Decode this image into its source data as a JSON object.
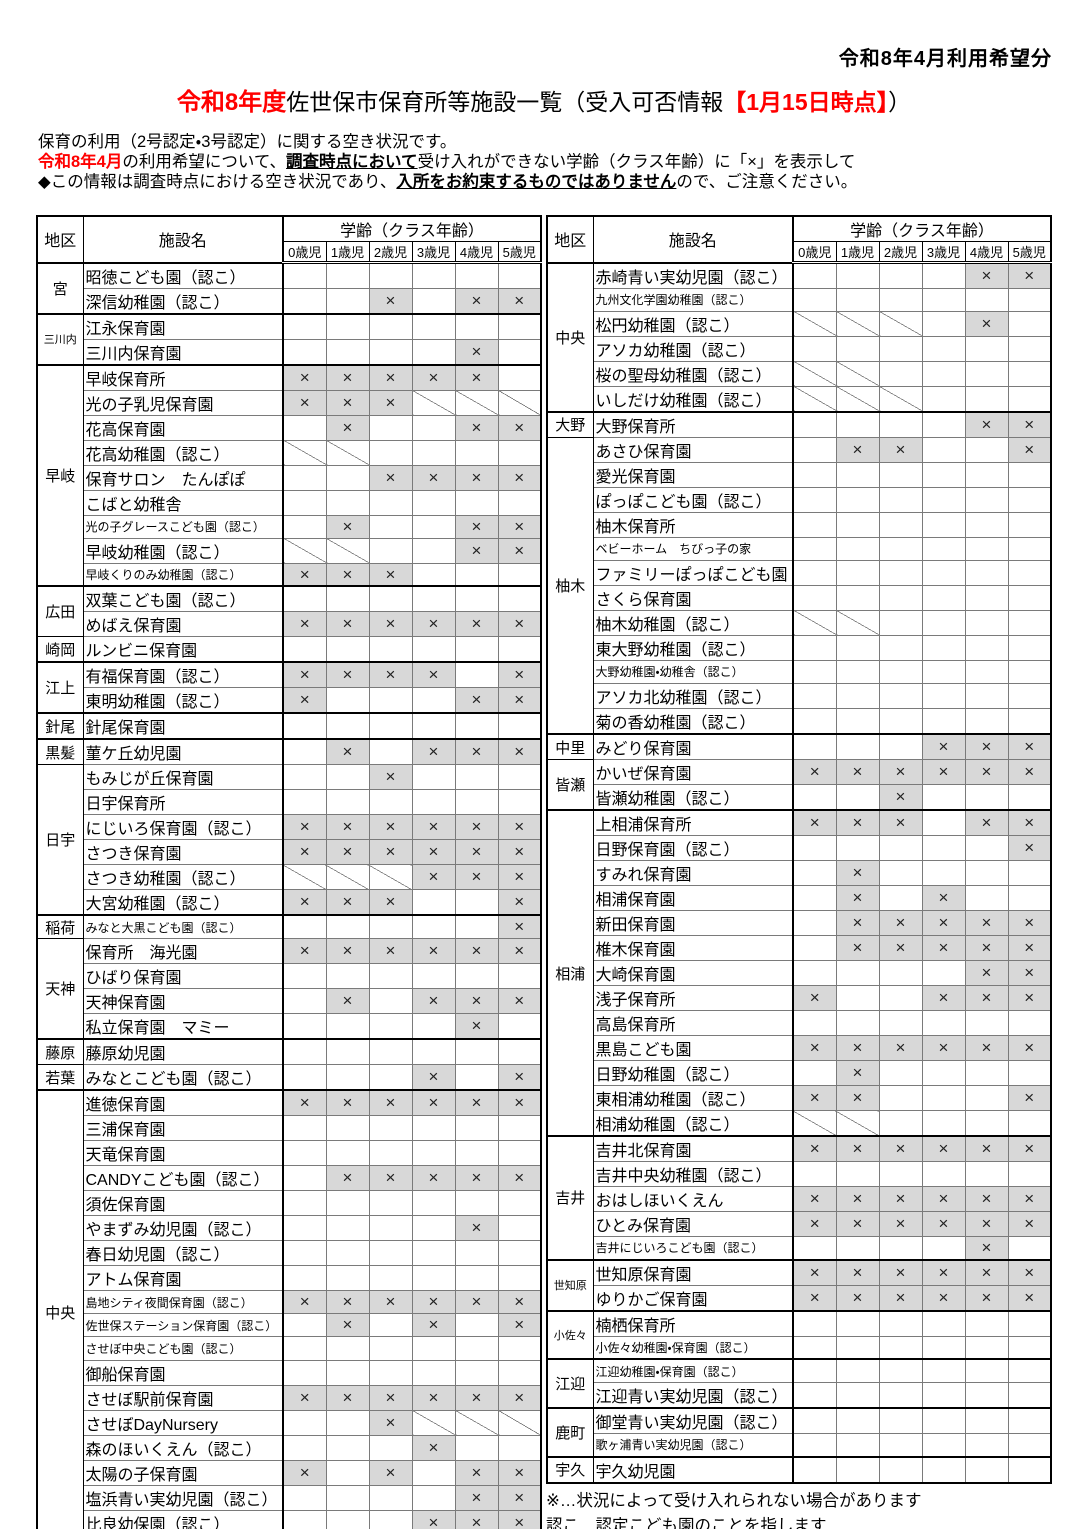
{
  "header": {
    "period_note": "令和8年4月利用希望分"
  },
  "title": {
    "era_prefix": "令和8年度",
    "main": "佐世保市保育所等施設一覧（受入可否情報",
    "date_highlight": "【1月15日時点】",
    "suffix": "）"
  },
  "intro": {
    "line1": "保育の利用（2号認定・3号認定）に関する空き状況です。",
    "line2_red": "令和8年4月",
    "line2_a": "の利用希望について、",
    "line2_bold": "調査時点において",
    "line2_b": "受け入れができない学齢（クラス年齢）に「×」を表示して",
    "line3_a": "◆この情報は調査時点における空き状況であり、",
    "line3_bold": "入所をお約束するものではありません",
    "line3_b": "ので、ご注意ください。"
  },
  "table_header": {
    "district": "地区",
    "facility": "施設名",
    "age_group": "学齢（クラス年齢）",
    "ages": [
      "0歳児",
      "1歳児",
      "2歳児",
      "3歳児",
      "4歳児",
      "5歳児"
    ]
  },
  "legend": {
    "x_mark": "×",
    "note1": "※…状況によって受け入れられない場合があります",
    "note2": "認こ…認定こども園のことを指します"
  },
  "colors": {
    "unavailable_bg": "#d8d8d8",
    "accent_red": "#ff0000"
  },
  "tables": [
    {
      "side": "left",
      "rows": [
        {
          "d": "宮",
          "s": 2,
          "g": 1,
          "n": "昭徳こども園（認こ）",
          "c": [
            "",
            "",
            "",
            "",
            "",
            ""
          ]
        },
        {
          "n": "深信幼稚園（認こ）",
          "c": [
            "",
            "",
            "x",
            "",
            "x",
            "x"
          ]
        },
        {
          "d": "三川内",
          "s": 2,
          "g": 1,
          "n": "江永保育園",
          "c": [
            "",
            "",
            "",
            "",
            "",
            ""
          ]
        },
        {
          "n": "三川内保育園",
          "c": [
            "",
            "",
            "",
            "",
            "x",
            ""
          ]
        },
        {
          "d": "早岐",
          "s": 9,
          "g": 1,
          "n": "早岐保育所",
          "c": [
            "x",
            "x",
            "x",
            "x",
            "x",
            ""
          ]
        },
        {
          "n": "光の子乳児保育園",
          "c": [
            "x",
            "x",
            "x",
            "d",
            "d",
            "d"
          ]
        },
        {
          "n": "花高保育園",
          "c": [
            "",
            "x",
            "",
            "",
            "x",
            "x"
          ]
        },
        {
          "n": "花高幼稚園（認こ）",
          "c": [
            "d",
            "d",
            "",
            "",
            "",
            ""
          ]
        },
        {
          "n": "保育サロン　たんぽぽ",
          "c": [
            "",
            "",
            "x",
            "x",
            "x",
            "x"
          ]
        },
        {
          "n": "こばと幼稚舎",
          "c": [
            "",
            "",
            "",
            "",
            "",
            ""
          ]
        },
        {
          "n": "光の子グレースこども園（認こ）",
          "c": [
            "",
            "x",
            "",
            "",
            "x",
            "x"
          ]
        },
        {
          "n": "早岐幼稚園（認こ）",
          "c": [
            "d",
            "d",
            "",
            "",
            "x",
            "x"
          ]
        },
        {
          "n": "早岐くりのみ幼稚園（認こ）",
          "c": [
            "x",
            "x",
            "x",
            "",
            "",
            ""
          ]
        },
        {
          "d": "広田",
          "s": 2,
          "g": 1,
          "n": "双葉こども園（認こ）",
          "c": [
            "",
            "",
            "",
            "",
            "",
            ""
          ]
        },
        {
          "n": "めばえ保育園",
          "c": [
            "x",
            "x",
            "x",
            "x",
            "x",
            "x"
          ]
        },
        {
          "d": "崎岡",
          "s": 1,
          "n": "ルンビニ保育園",
          "c": [
            "",
            "",
            "",
            "",
            "",
            ""
          ]
        },
        {
          "d": "江上",
          "s": 2,
          "g": 1,
          "n": "有福保育園（認こ）",
          "c": [
            "x",
            "x",
            "x",
            "x",
            "",
            "x"
          ]
        },
        {
          "n": "東明幼稚園（認こ）",
          "c": [
            "x",
            "",
            "",
            "",
            "x",
            "x"
          ]
        },
        {
          "d": "針尾",
          "s": 1,
          "g": 1,
          "n": "針尾保育園",
          "c": [
            "",
            "",
            "",
            "",
            "",
            ""
          ]
        },
        {
          "d": "黒髪",
          "s": 1,
          "g": 1,
          "n": "菫ケ丘幼児園",
          "c": [
            "",
            "x",
            "",
            "x",
            "x",
            "x"
          ]
        },
        {
          "d": "日宇",
          "s": 6,
          "n": "もみじが丘保育園",
          "c": [
            "",
            "",
            "x",
            "",
            "",
            ""
          ]
        },
        {
          "n": "日宇保育所",
          "c": [
            "",
            "",
            "",
            "",
            "",
            ""
          ]
        },
        {
          "n": "にじいろ保育園（認こ）",
          "c": [
            "x",
            "x",
            "x",
            "x",
            "x",
            "x"
          ]
        },
        {
          "n": "さつき保育園",
          "c": [
            "x",
            "x",
            "x",
            "x",
            "x",
            "x"
          ]
        },
        {
          "n": "さつき幼稚園（認こ）",
          "c": [
            "d",
            "d",
            "d",
            "x",
            "x",
            "x"
          ]
        },
        {
          "n": "大宮幼稚園（認こ）",
          "c": [
            "x",
            "x",
            "x",
            "",
            "",
            "x"
          ]
        },
        {
          "d": "稲荷",
          "s": 1,
          "g": 1,
          "n": "みなと大黒こども園（認こ）",
          "c": [
            "",
            "",
            "",
            "",
            "",
            "x"
          ]
        },
        {
          "d": "天神",
          "s": 4,
          "n": "保育所　海光園",
          "c": [
            "x",
            "x",
            "x",
            "x",
            "x",
            "x"
          ]
        },
        {
          "n": "ひばり保育園",
          "c": [
            "",
            "",
            "",
            "",
            "",
            ""
          ]
        },
        {
          "n": "天神保育園",
          "c": [
            "",
            "x",
            "",
            "x",
            "x",
            "x"
          ]
        },
        {
          "n": "私立保育園　マミー",
          "c": [
            "",
            "",
            "",
            "",
            "x",
            ""
          ]
        },
        {
          "d": "藤原",
          "s": 1,
          "g": 1,
          "n": "藤原幼児園",
          "c": [
            "",
            "",
            "",
            "",
            "",
            ""
          ]
        },
        {
          "d": "若葉",
          "s": 1,
          "n": "みなとこども園（認こ）",
          "c": [
            "",
            "",
            "",
            "x",
            "",
            "x"
          ]
        },
        {
          "d": "中央",
          "s": 18,
          "g": 1,
          "n": "進徳保育園",
          "c": [
            "x",
            "x",
            "x",
            "x",
            "x",
            "x"
          ]
        },
        {
          "n": "三浦保育園",
          "c": [
            "",
            "",
            "",
            "",
            "",
            ""
          ]
        },
        {
          "n": "天竜保育園",
          "c": [
            "",
            "",
            "",
            "",
            "",
            ""
          ]
        },
        {
          "n": "CANDYこども園（認こ）",
          "c": [
            "",
            "x",
            "x",
            "x",
            "x",
            "x"
          ]
        },
        {
          "n": "須佐保育園",
          "c": [
            "",
            "",
            "",
            "",
            "",
            ""
          ]
        },
        {
          "n": "やまずみ幼児園（認こ）",
          "c": [
            "",
            "",
            "",
            "",
            "x",
            ""
          ]
        },
        {
          "n": "春日幼児園（認こ）",
          "c": [
            "",
            "",
            "",
            "",
            "",
            ""
          ]
        },
        {
          "n": "アトム保育園",
          "c": [
            "",
            "",
            "",
            "",
            "",
            ""
          ]
        },
        {
          "n": "島地シティ夜間保育園（認こ）",
          "c": [
            "x",
            "x",
            "x",
            "x",
            "x",
            "x"
          ]
        },
        {
          "n": "佐世保ステーション保育園（認こ）",
          "c": [
            "",
            "x",
            "",
            "x",
            "",
            "x"
          ]
        },
        {
          "n": "させぼ中央こども園（認こ）",
          "c": [
            "",
            "",
            "",
            "",
            "",
            ""
          ]
        },
        {
          "n": "御船保育園",
          "c": [
            "",
            "",
            "",
            "",
            "",
            ""
          ]
        },
        {
          "n": "させぼ駅前保育園",
          "c": [
            "x",
            "x",
            "x",
            "x",
            "x",
            "x"
          ]
        },
        {
          "n": "させぼDayNursery",
          "c": [
            "",
            "",
            "x",
            "d",
            "d",
            "d"
          ]
        },
        {
          "n": "森のほいくえん（認こ）",
          "c": [
            "",
            "",
            "",
            "x",
            "",
            ""
          ]
        },
        {
          "n": "太陽の子保育園",
          "c": [
            "x",
            "",
            "x",
            "",
            "x",
            "x"
          ]
        },
        {
          "n": "塩浜青い実幼児園（認こ）",
          "c": [
            "",
            "",
            "",
            "",
            "x",
            "x"
          ]
        },
        {
          "n": "比良幼保園（認こ）",
          "c": [
            "",
            "",
            "",
            "x",
            "x",
            "x"
          ]
        }
      ]
    },
    {
      "side": "right",
      "rows": [
        {
          "d": "中央",
          "s": 6,
          "g": 1,
          "n": "赤崎青い実幼児園（認こ）",
          "c": [
            "",
            "",
            "",
            "",
            "x",
            "x"
          ]
        },
        {
          "n": "九州文化学園幼稚園（認こ）",
          "c": [
            "",
            "",
            "",
            "",
            "",
            ""
          ]
        },
        {
          "n": "松円幼稚園（認こ）",
          "c": [
            "d",
            "d",
            "d",
            "",
            "x",
            ""
          ]
        },
        {
          "n": "アソカ幼稚園（認こ）",
          "c": [
            "",
            "",
            "",
            "",
            "",
            ""
          ]
        },
        {
          "n": "桜の聖母幼稚園（認こ）",
          "c": [
            "d",
            "d",
            "",
            "",
            "",
            ""
          ]
        },
        {
          "n": "いしだけ幼稚園（認こ）",
          "c": [
            "d",
            "d",
            "d",
            "",
            "",
            ""
          ]
        },
        {
          "d": "大野",
          "s": 1,
          "g": 1,
          "n": "大野保育所",
          "c": [
            "",
            "",
            "",
            "",
            "x",
            "x"
          ]
        },
        {
          "d": "柚木",
          "s": 12,
          "n": "あさひ保育園",
          "c": [
            "",
            "x",
            "x",
            "",
            "",
            "x"
          ]
        },
        {
          "n": "愛光保育園",
          "c": [
            "",
            "",
            "",
            "",
            "",
            ""
          ]
        },
        {
          "n": "ぽっぽこども園（認こ）",
          "c": [
            "",
            "",
            "",
            "",
            "",
            ""
          ]
        },
        {
          "n": "柚木保育所",
          "c": [
            "",
            "",
            "",
            "",
            "",
            ""
          ]
        },
        {
          "n": "ベビーホーム　ちびっ子の家",
          "c": [
            "",
            "",
            "",
            "",
            "",
            ""
          ]
        },
        {
          "n": "ファミリーぽっぽこども園",
          "c": [
            "",
            "",
            "",
            "",
            "",
            ""
          ]
        },
        {
          "n": "さくら保育園",
          "c": [
            "",
            "",
            "",
            "",
            "",
            ""
          ]
        },
        {
          "n": "柚木幼稚園（認こ）",
          "c": [
            "d",
            "d",
            "",
            "",
            "",
            ""
          ]
        },
        {
          "n": "東大野幼稚園（認こ）",
          "c": [
            "",
            "",
            "",
            "",
            "",
            ""
          ]
        },
        {
          "n": "大野幼稚園・幼稚舎（認こ）",
          "c": [
            "",
            "",
            "",
            "",
            "",
            ""
          ]
        },
        {
          "n": "アソカ北幼稚園（認こ）",
          "c": [
            "",
            "",
            "",
            "",
            "",
            ""
          ]
        },
        {
          "n": "菊の香幼稚園（認こ）",
          "c": [
            "",
            "",
            "",
            "",
            "",
            ""
          ]
        },
        {
          "d": "中里",
          "s": 1,
          "g": 1,
          "n": "みどり保育園",
          "c": [
            "",
            "",
            "",
            "x",
            "x",
            "x"
          ]
        },
        {
          "d": "皆瀬",
          "s": 2,
          "n": "かいぜ保育園",
          "c": [
            "x",
            "x",
            "x",
            "x",
            "x",
            "x"
          ]
        },
        {
          "n": "皆瀬幼稚園（認こ）",
          "c": [
            "",
            "",
            "x",
            "",
            "",
            ""
          ]
        },
        {
          "d": "相浦",
          "s": 13,
          "g": 1,
          "n": "上相浦保育所",
          "c": [
            "x",
            "x",
            "x",
            "",
            "x",
            "x"
          ]
        },
        {
          "n": "日野保育園（認こ）",
          "c": [
            "",
            "",
            "",
            "",
            "",
            "x"
          ]
        },
        {
          "n": "すみれ保育園",
          "c": [
            "",
            "x",
            "",
            "",
            "",
            ""
          ]
        },
        {
          "n": "相浦保育園",
          "c": [
            "",
            "x",
            "",
            "x",
            "",
            ""
          ]
        },
        {
          "n": "新田保育園",
          "c": [
            "",
            "x",
            "x",
            "x",
            "x",
            "x"
          ]
        },
        {
          "n": "椎木保育園",
          "c": [
            "",
            "x",
            "x",
            "x",
            "x",
            "x"
          ]
        },
        {
          "n": "大崎保育園",
          "c": [
            "",
            "",
            "",
            "",
            "x",
            "x"
          ]
        },
        {
          "n": "浅子保育所",
          "c": [
            "x",
            "",
            "",
            "x",
            "x",
            "x"
          ]
        },
        {
          "n": "高島保育所",
          "c": [
            "",
            "",
            "",
            "",
            "",
            ""
          ]
        },
        {
          "n": "黒島こども園",
          "c": [
            "x",
            "x",
            "x",
            "x",
            "x",
            "x"
          ]
        },
        {
          "n": "日野幼稚園（認こ）",
          "c": [
            "",
            "x",
            "",
            "",
            "",
            ""
          ]
        },
        {
          "n": "東相浦幼稚園（認こ）",
          "c": [
            "x",
            "x",
            "",
            "",
            "",
            "x"
          ]
        },
        {
          "n": "相浦幼稚園（認こ）",
          "c": [
            "d",
            "d",
            "",
            "",
            "",
            ""
          ]
        },
        {
          "d": "吉井",
          "s": 5,
          "g": 1,
          "n": "吉井北保育園",
          "c": [
            "x",
            "x",
            "x",
            "x",
            "x",
            "x"
          ]
        },
        {
          "n": "吉井中央幼稚園（認こ）",
          "c": [
            "",
            "",
            "",
            "",
            "",
            ""
          ]
        },
        {
          "n": "おはしほいくえん",
          "c": [
            "x",
            "x",
            "x",
            "x",
            "x",
            "x"
          ]
        },
        {
          "n": "ひとみ保育園",
          "c": [
            "x",
            "x",
            "x",
            "x",
            "x",
            "x"
          ]
        },
        {
          "n": "吉井にじいろこども園（認こ）",
          "c": [
            "",
            "",
            "",
            "",
            "x",
            ""
          ]
        },
        {
          "d": "世知原",
          "s": 2,
          "g": 1,
          "n": "世知原保育園",
          "c": [
            "x",
            "x",
            "x",
            "x",
            "x",
            "x"
          ]
        },
        {
          "n": "ゆりかご保育園",
          "c": [
            "x",
            "x",
            "x",
            "x",
            "x",
            "x"
          ]
        },
        {
          "d": "小佐々",
          "s": 2,
          "g": 1,
          "n": "楠栖保育所",
          "c": [
            "",
            "",
            "",
            "",
            "",
            ""
          ]
        },
        {
          "n": "小佐々幼稚園・保育園（認こ）",
          "c": [
            "",
            "",
            "",
            "",
            "",
            ""
          ]
        },
        {
          "d": "江迎",
          "s": 2,
          "g": 1,
          "n": "江迎幼稚園・保育園（認こ）",
          "c": [
            "",
            "",
            "",
            "",
            "",
            ""
          ]
        },
        {
          "n": "江迎青い実幼児園（認こ）",
          "c": [
            "",
            "",
            "",
            "",
            "",
            ""
          ]
        },
        {
          "d": "鹿町",
          "s": 2,
          "g": 1,
          "n": "御堂青い実幼児園（認こ）",
          "c": [
            "",
            "",
            "",
            "",
            "",
            ""
          ]
        },
        {
          "n": "歌ヶ浦青い実幼児園（認こ）",
          "c": [
            "",
            "",
            "",
            "",
            "",
            ""
          ]
        },
        {
          "d": "宇久",
          "s": 1,
          "g": 1,
          "n": "宇久幼児園",
          "c": [
            "",
            "",
            "",
            "",
            "",
            ""
          ]
        }
      ]
    }
  ]
}
